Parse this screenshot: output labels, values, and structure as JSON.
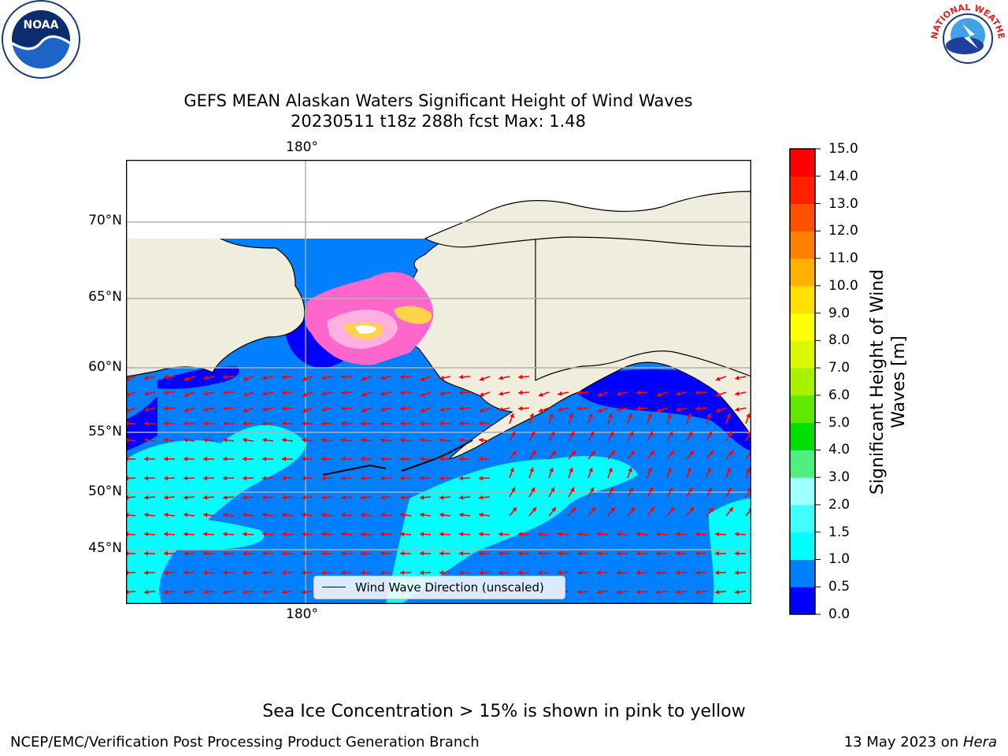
{
  "title": {
    "line1": "GEFS MEAN Alaskan Waters Significant Height of Wind Waves",
    "line2": "20230511 t18z 288h fcst   Max: 1.48"
  },
  "map": {
    "lon_label_top": "180°",
    "lon_label_bottom": "180°",
    "lat_labels": [
      "70°N",
      "65°N",
      "60°N",
      "55°N",
      "50°N",
      "45°N"
    ],
    "land_color": "#efedde",
    "ocean_colors": {
      "wave_0_0_5": "#0000ff",
      "wave_0_5_1_0": "#0080ff",
      "wave_1_0_1_5": "#00ffff"
    },
    "ice_colors": [
      "#ff66cc",
      "#ff9fd8",
      "#ffb870",
      "#ffd24d"
    ],
    "arrow_color": "#ff0000"
  },
  "legend": {
    "label": "Wind Wave Direction (unscaled)"
  },
  "colorbar": {
    "label_line1": "Significant Height of Wind",
    "label_line2": "Waves [m]",
    "ticks": [
      "15.0",
      "14.0",
      "13.0",
      "12.0",
      "11.0",
      "10.0",
      "9.0",
      "8.0",
      "7.0",
      "6.0",
      "5.0",
      "4.0",
      "3.0",
      "2.0",
      "1.5",
      "1.0",
      "0.5",
      "0.0"
    ],
    "colors": [
      "#0000ff",
      "#0080ff",
      "#00ffff",
      "#40ffff",
      "#a0ffff",
      "#50f080",
      "#00e000",
      "#60e800",
      "#a8f000",
      "#d8f800",
      "#ffff00",
      "#ffe000",
      "#ffb000",
      "#ff8000",
      "#ff5000",
      "#ff2000",
      "#ff0000"
    ]
  },
  "note": "Sea Ice Concentration > 15% is shown in pink to yellow",
  "footer": {
    "left": "NCEP/EMC/Verification Post Processing Product Generation Branch",
    "right_prefix": "13 May 2023 on ",
    "right_italic": "Hera"
  },
  "logos": {
    "noaa_text": "NOAA",
    "nws_text": "NATIONAL WEATHER SERVICE"
  }
}
